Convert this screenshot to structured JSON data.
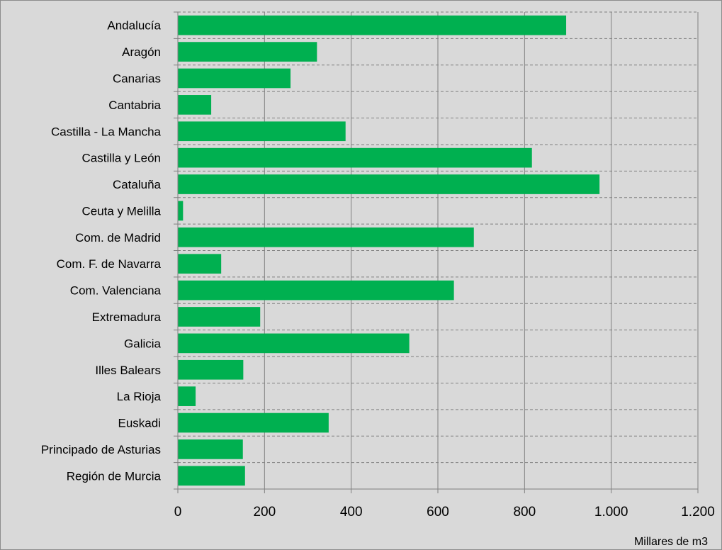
{
  "chart_data": {
    "type": "bar",
    "orientation": "horizontal",
    "categories": [
      "Andalucía",
      "Aragón",
      "Canarias",
      "Cantabria",
      "Castilla - La Mancha",
      "Castilla y León",
      "Cataluña",
      "Ceuta y Melilla",
      "Com. de Madrid",
      "Com. F. de Navarra",
      "Com. Valenciana",
      "Extremadura",
      "Galicia",
      "Illes Balears",
      "La Rioja",
      "Euskadi",
      "Principado de Asturias",
      "Región de Murcia"
    ],
    "series": [
      {
        "values": [
          896,
          321,
          260,
          77,
          387,
          817,
          973,
          12,
          683,
          100,
          637,
          190,
          534,
          151,
          41,
          348,
          150,
          155
        ],
        "color": "#00b050"
      }
    ],
    "xlim": [
      0,
      1200
    ],
    "x_ticks": [
      0,
      200,
      400,
      600,
      800,
      1000,
      1200
    ],
    "x_tick_labels": [
      "0",
      "200",
      "400",
      "600",
      "800",
      "1.000",
      "1.200"
    ],
    "xlabel": "Millares de m3",
    "grid": {
      "vertical": "solid",
      "horizontal": "dashed"
    },
    "plot_background": "#d9d9d9",
    "legend": "none"
  }
}
